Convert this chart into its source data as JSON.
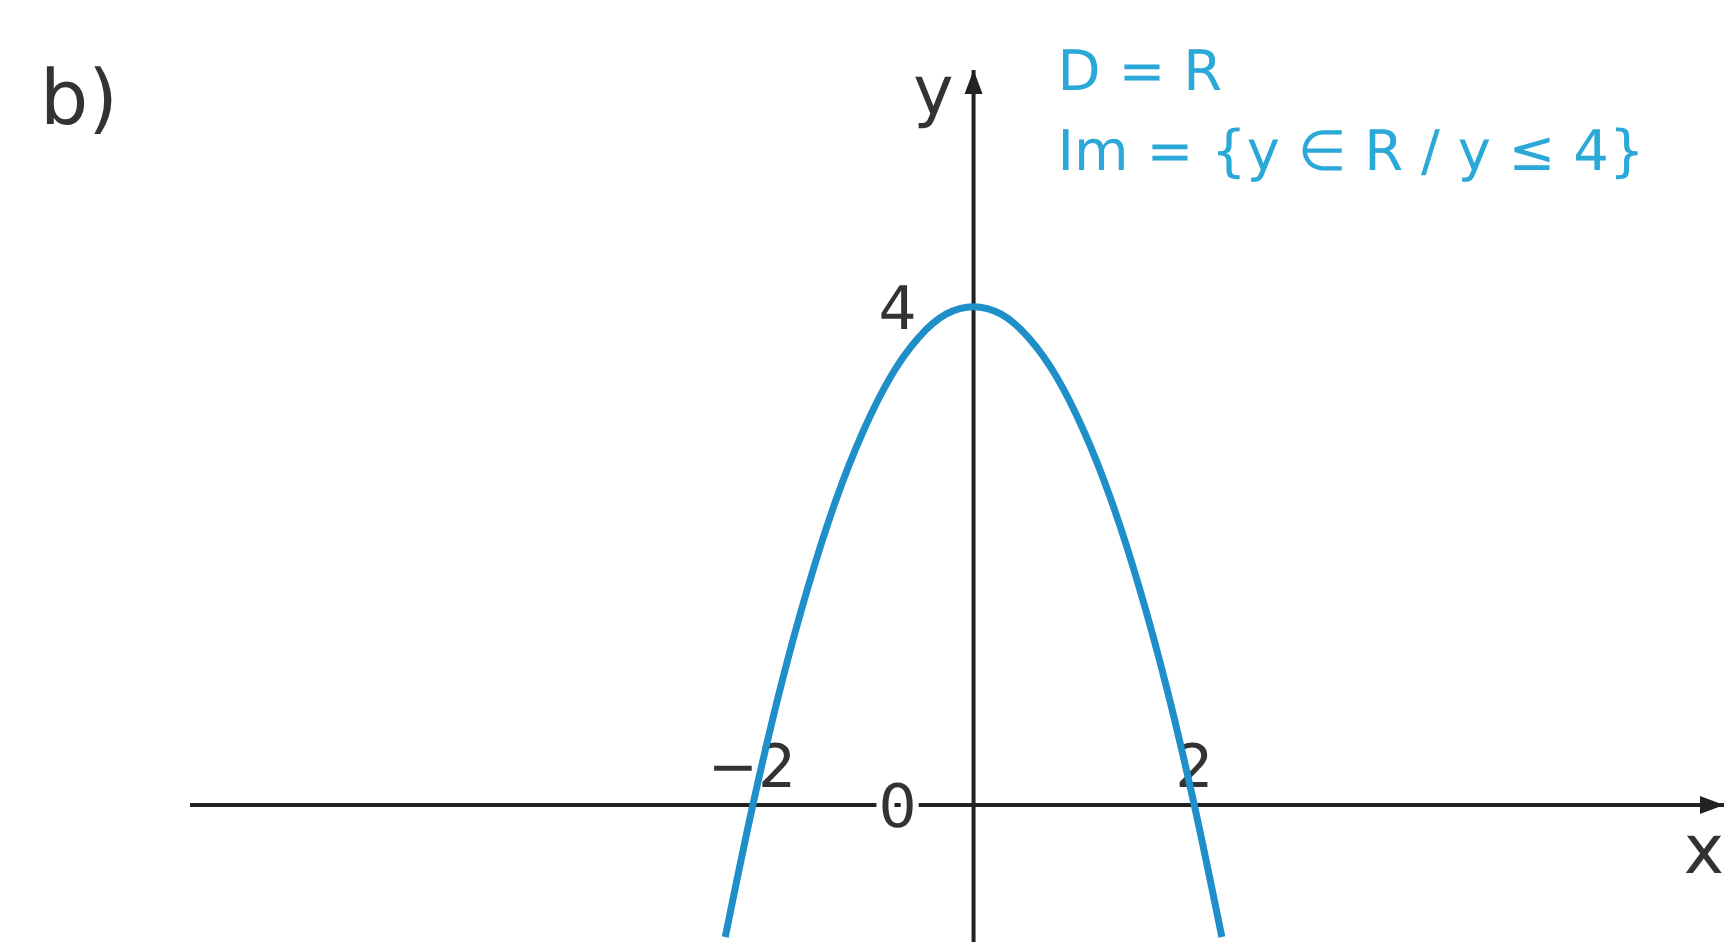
{
  "chart_data": {
    "type": "line",
    "title": "b)",
    "xlabel": "x",
    "ylabel": "y",
    "annotations": [
      "D = R",
      "Im = {y ∈ R / y ≤ 4}"
    ],
    "x": [
      -2.25,
      -2.0,
      -1.75,
      -1.5,
      -1.25,
      -1.0,
      -0.75,
      -0.5,
      -0.25,
      0,
      0.25,
      0.5,
      0.75,
      1.0,
      1.25,
      1.5,
      1.75,
      2.0,
      2.25
    ],
    "series": [
      {
        "color": "#1f8fc9",
        "values": [
          -1.06,
          0,
          0.94,
          1.75,
          2.44,
          3,
          3.44,
          3.75,
          3.94,
          4,
          3.94,
          3.75,
          3.44,
          3,
          2.44,
          1.75,
          0.94,
          0,
          -1.06
        ]
      }
    ],
    "xlim": [
      -7.1,
      6.8
    ],
    "ylim": [
      -1.1,
      5.9
    ],
    "xticks": [
      {
        "value": -2,
        "label": "−2"
      },
      2
    ],
    "yticks": [
      0,
      4
    ]
  }
}
